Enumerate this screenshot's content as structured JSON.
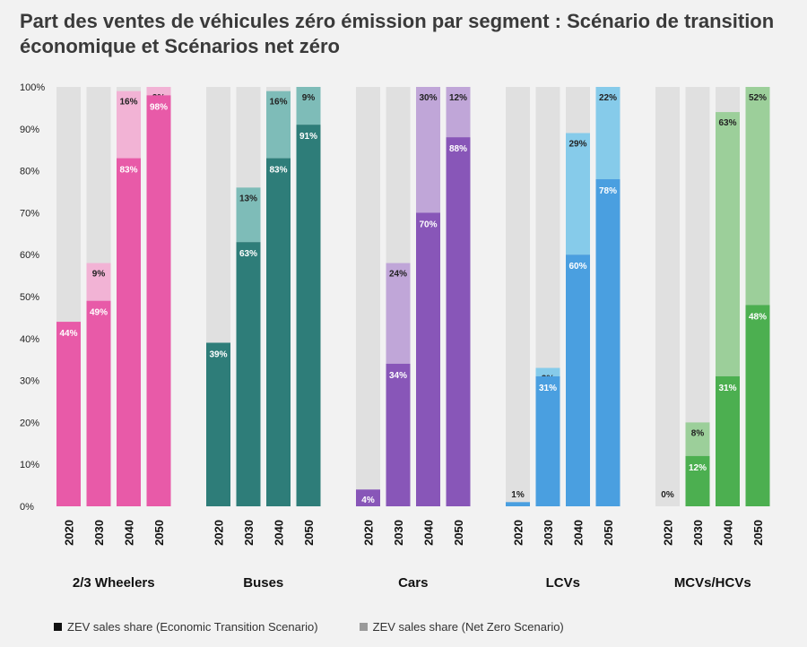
{
  "chart_data": {
    "type": "bar",
    "title": "Part des ventes de véhicules zéro émission par segment : Scénario de transition économique et Scénarios net zéro",
    "ylim": [
      0,
      100
    ],
    "yticks": [
      "0%",
      "10%",
      "20%",
      "30%",
      "40%",
      "50%",
      "60%",
      "70%",
      "80%",
      "90%",
      "100%"
    ],
    "grid": false,
    "legend": [
      {
        "label": "ZEV sales share (Economic Transition Scenario)",
        "color": "#111111"
      },
      {
        "label": "ZEV sales share (Net Zero Scenario)",
        "color": "#9a9a9a"
      }
    ],
    "background_color": "#e0e0e0",
    "segments": [
      {
        "name": "2/3 Wheelers",
        "dark": "#e85aa8",
        "light": "#f2b3d5",
        "years": [
          "2020",
          "2030",
          "2040",
          "2050"
        ],
        "ets": [
          44,
          49,
          83,
          98
        ],
        "nz_extra": [
          null,
          9,
          16,
          2
        ],
        "ets_labels": [
          "44%",
          "49%",
          "83%",
          "98%"
        ],
        "nz_labels": [
          "",
          "9%",
          "16%",
          "2%"
        ]
      },
      {
        "name": "Buses",
        "dark": "#2e7d79",
        "light": "#7ebcb8",
        "years": [
          "2020",
          "2030",
          "2040",
          "2050"
        ],
        "ets": [
          39,
          63,
          83,
          91
        ],
        "nz_extra": [
          null,
          13,
          16,
          9
        ],
        "ets_labels": [
          "39%",
          "63%",
          "83%",
          "91%"
        ],
        "nz_labels": [
          "",
          "13%",
          "16%",
          "9%"
        ]
      },
      {
        "name": "Cars",
        "dark": "#8856b8",
        "light": "#c0a6d8",
        "years": [
          "2020",
          "2030",
          "2040",
          "2050"
        ],
        "ets": [
          4,
          34,
          70,
          88
        ],
        "nz_extra": [
          null,
          24,
          30,
          12
        ],
        "ets_labels": [
          "4%",
          "34%",
          "70%",
          "88%"
        ],
        "nz_labels": [
          "",
          "24%",
          "30%",
          "12%"
        ]
      },
      {
        "name": "LCVs",
        "dark": "#4a9fe0",
        "light": "#86cbea",
        "years": [
          "2020",
          "2030",
          "2040",
          "2050"
        ],
        "ets": [
          1,
          31,
          60,
          78
        ],
        "nz_extra": [
          null,
          2,
          29,
          22
        ],
        "ets_labels": [
          "1%",
          "31%",
          "60%",
          "78%"
        ],
        "nz_labels": [
          "",
          "2%",
          "29%",
          "22%"
        ]
      },
      {
        "name": "MCVs/HCVs",
        "dark": "#4caf50",
        "light": "#9ccf9a",
        "years": [
          "2020",
          "2030",
          "2040",
          "2050"
        ],
        "ets": [
          0,
          12,
          31,
          48
        ],
        "nz_extra": [
          null,
          8,
          63,
          52
        ],
        "ets_labels": [
          "0%",
          "12%",
          "31%",
          "48%"
        ],
        "nz_labels": [
          "",
          "8%",
          "63%",
          "52%"
        ]
      }
    ]
  }
}
